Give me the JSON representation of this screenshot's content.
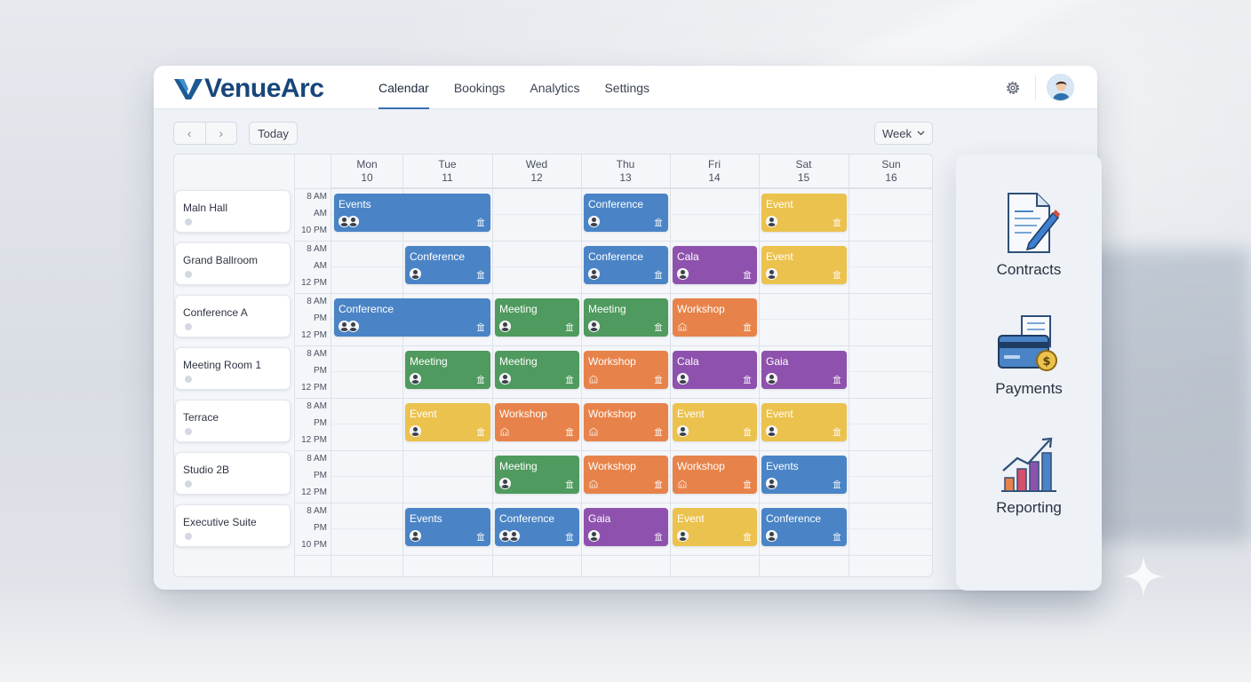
{
  "app": {
    "name": "VenueArc"
  },
  "nav": {
    "tabs": [
      {
        "label": "Calendar",
        "active": true
      },
      {
        "label": "Bookings"
      },
      {
        "label": "Analytics"
      },
      {
        "label": "Settings"
      }
    ]
  },
  "toolbar": {
    "prev_icon": "chevron-left-icon",
    "next_icon": "chevron-right-icon",
    "today_label": "Today",
    "view_label": "Week"
  },
  "calendar": {
    "days": [
      {
        "name": "Mon",
        "date": "10"
      },
      {
        "name": "Tue",
        "date": "11"
      },
      {
        "name": "Wed",
        "date": "12"
      },
      {
        "name": "Thu",
        "date": "13"
      },
      {
        "name": "Fri",
        "date": "14"
      },
      {
        "name": "Sat",
        "date": "15"
      },
      {
        "name": "Sun",
        "date": "16"
      }
    ],
    "venues": [
      {
        "name": "Maln Hall",
        "times": [
          "8 AM",
          "AM",
          "10 PM"
        ]
      },
      {
        "name": "Grand Ballroom",
        "times": [
          "8 AM",
          "AM",
          "12 PM"
        ]
      },
      {
        "name": "Conference A",
        "times": [
          "8 AM",
          "PM",
          "12 PM"
        ]
      },
      {
        "name": "Meeting Room 1",
        "times": [
          "8 AM",
          "PM",
          "12 PM"
        ]
      },
      {
        "name": "Terrace",
        "times": [
          "8 AM",
          "PM",
          "12 PM"
        ]
      },
      {
        "name": "Studio 2B",
        "times": [
          "8 AM",
          "PM",
          "12 PM"
        ]
      },
      {
        "name": "Executive Suite",
        "times": [
          "8 AM",
          "PM",
          "10 PM"
        ]
      }
    ],
    "events": [
      {
        "row": 0,
        "day": 0,
        "span": 2,
        "title": "Events",
        "color": "blue",
        "avatars": 2
      },
      {
        "row": 0,
        "day": 3,
        "span": 1,
        "title": "Conference",
        "color": "blue",
        "avatars": 1
      },
      {
        "row": 0,
        "day": 5,
        "span": 1,
        "title": "Event",
        "color": "yellow",
        "avatars": 1
      },
      {
        "row": 1,
        "day": 1,
        "span": 1,
        "title": "Conference",
        "color": "blue",
        "avatars": 1
      },
      {
        "row": 1,
        "day": 3,
        "span": 1,
        "title": "Conference",
        "color": "blue",
        "avatars": 1
      },
      {
        "row": 1,
        "day": 4,
        "span": 1,
        "title": "Cala",
        "color": "purple",
        "avatars": 1
      },
      {
        "row": 1,
        "day": 5,
        "span": 1,
        "title": "Event",
        "color": "yellow",
        "avatars": 1
      },
      {
        "row": 2,
        "day": 0,
        "span": 2,
        "title": "Conference",
        "color": "blue",
        "avatars": 2
      },
      {
        "row": 2,
        "day": 2,
        "span": 1,
        "title": "Meeting",
        "color": "green",
        "avatars": 1
      },
      {
        "row": 2,
        "day": 3,
        "span": 1,
        "title": "Meeting",
        "color": "green",
        "avatars": 1
      },
      {
        "row": 2,
        "day": 4,
        "span": 1,
        "title": "Workshop",
        "color": "orange",
        "avatars": 0
      },
      {
        "row": 3,
        "day": 1,
        "span": 1,
        "title": "Meeting",
        "color": "green",
        "avatars": 1
      },
      {
        "row": 3,
        "day": 2,
        "span": 1,
        "title": "Meeting",
        "color": "green",
        "avatars": 1
      },
      {
        "row": 3,
        "day": 3,
        "span": 1,
        "title": "Workshop",
        "color": "orange",
        "avatars": 0
      },
      {
        "row": 3,
        "day": 4,
        "span": 1,
        "title": "Cala",
        "color": "purple",
        "avatars": 1
      },
      {
        "row": 3,
        "day": 5,
        "span": 1,
        "title": "Gaia",
        "color": "purple",
        "avatars": 1
      },
      {
        "row": 4,
        "day": 1,
        "span": 1,
        "title": "Event",
        "color": "yellow",
        "avatars": 1
      },
      {
        "row": 4,
        "day": 2,
        "span": 1,
        "title": "Workshop",
        "color": "orange",
        "avatars": 0
      },
      {
        "row": 4,
        "day": 3,
        "span": 1,
        "title": "Workshop",
        "color": "orange",
        "avatars": 0
      },
      {
        "row": 4,
        "day": 4,
        "span": 1,
        "title": "Event",
        "color": "yellow",
        "avatars": 1
      },
      {
        "row": 4,
        "day": 5,
        "span": 1,
        "title": "Event",
        "color": "yellow",
        "avatars": 1
      },
      {
        "row": 5,
        "day": 2,
        "span": 1,
        "title": "Meeting",
        "color": "green",
        "avatars": 1
      },
      {
        "row": 5,
        "day": 3,
        "span": 1,
        "title": "Workshop",
        "color": "orange",
        "avatars": 0
      },
      {
        "row": 5,
        "day": 4,
        "span": 1,
        "title": "Workshop",
        "color": "orange",
        "avatars": 0
      },
      {
        "row": 5,
        "day": 5,
        "span": 1,
        "title": "Events",
        "color": "blue",
        "avatars": 1
      },
      {
        "row": 6,
        "day": 1,
        "span": 1,
        "title": "Events",
        "color": "blue",
        "avatars": 1
      },
      {
        "row": 6,
        "day": 2,
        "span": 1,
        "title": "Conference",
        "color": "blue",
        "avatars": 2
      },
      {
        "row": 6,
        "day": 3,
        "span": 1,
        "title": "Gaia",
        "color": "purple",
        "avatars": 1
      },
      {
        "row": 6,
        "day": 4,
        "span": 1,
        "title": "Event",
        "color": "yellow",
        "avatars": 1
      },
      {
        "row": 6,
        "day": 5,
        "span": 1,
        "title": "Conference",
        "color": "blue",
        "avatars": 1
      }
    ]
  },
  "side_panel": {
    "items": [
      {
        "label": "Contracts",
        "icon": "contract-document-pen-icon"
      },
      {
        "label": "Payments",
        "icon": "credit-card-receipt-icon"
      },
      {
        "label": "Reporting",
        "icon": "bar-chart-trend-icon"
      }
    ]
  },
  "colors": {
    "blue": "#4a84c6",
    "green": "#4f9a5e",
    "purple": "#8e52ae",
    "orange": "#e7834a",
    "yellow": "#ecc24e",
    "brand": "#17467a",
    "accent": "#3a6fb4"
  }
}
